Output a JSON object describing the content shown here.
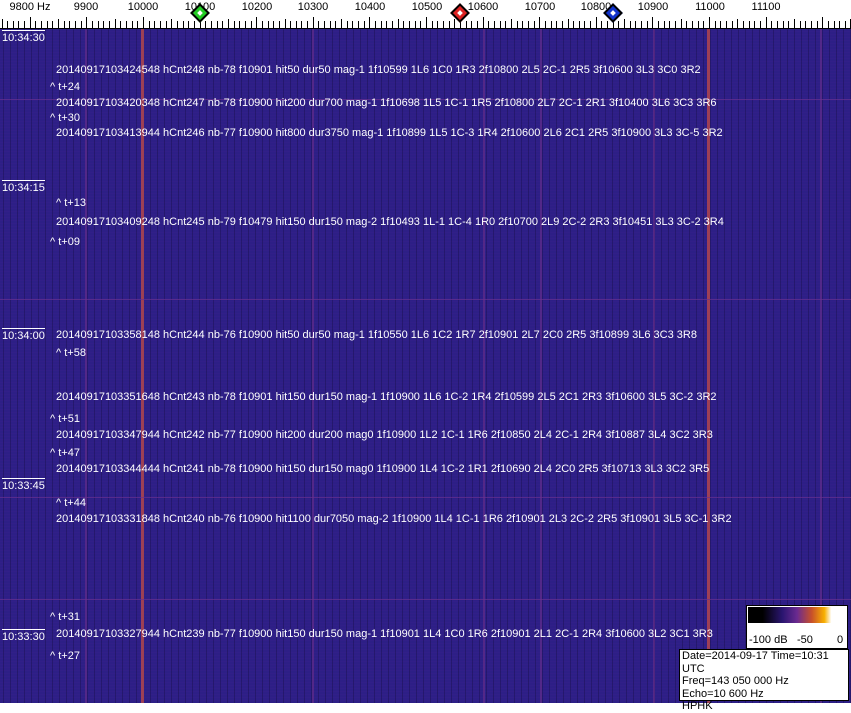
{
  "axis": {
    "unit_label": "9800 Hz",
    "ticks": [
      "9900",
      "10000",
      "10100",
      "10200",
      "10300",
      "10400",
      "10500",
      "10600",
      "10700",
      "10800",
      "10900",
      "11000",
      "11100"
    ],
    "markers": [
      {
        "name": "green",
        "freq_hz": 10100,
        "color": "#22cc22"
      },
      {
        "name": "red",
        "freq_hz": 10560,
        "color": "#dd2222"
      },
      {
        "name": "blue",
        "freq_hz": 10830,
        "color": "#1133cc"
      }
    ]
  },
  "timestamps": [
    "10:34:30",
    "10:34:15",
    "10:34:00",
    "10:33:45",
    "10:33:30"
  ],
  "detections": [
    "20140917103424548 hCnt248 nb-78 f10901 hit50 dur50 mag-1 1f10599 1L6 1C0 1R3 2f10800 2L5 2C-1 2R5 3f10600 3L3 3C0 3R2",
    "20140917103420348 hCnt247 nb-78 f10900 hit200 dur700 mag-1 1f10698 1L5 1C-1 1R5 2f10800 2L7 2C-1 2R1 3f10400 3L6 3C3 3R6",
    "20140917103413944 hCnt246 nb-77 f10900 hit800 dur3750 mag-1 1f10899 1L5 1C-3 1R4 2f10600 2L6 2C1 2R5 3f10900 3L3 3C-5 3R2",
    "20140917103409248 hCnt245 nb-79 f10479 hit150 dur150 mag-2 1f10493 1L-1 1C-4 1R0 2f10700 2L9 2C-2 2R3 3f10451 3L3 3C-2 3R4",
    "20140917103358148 hCnt244 nb-76 f10900 hit50 dur50 mag-1 1f10550 1L6 1C2 1R7 2f10901 2L7 2C0 2R5 3f10899 3L6 3C3 3R8",
    "20140917103351648 hCnt243 nb-78 f10901 hit150 dur150 mag-1 1f10900 1L6 1C-2 1R4 2f10599 2L5 2C1 2R3 3f10600 3L5 3C-2 3R2",
    "20140917103347944 hCnt242 nb-77 f10900 hit200 dur200 mag0 1f10900 1L2 1C-1 1R6 2f10850 2L4 2C-1 2R4 3f10887 3L4 3C2 3R3",
    "20140917103344444 hCnt241 nb-78 f10900 hit150 dur150 mag0 1f10900 1L4 1C-2 1R1 2f10690 2L4 2C0 2R5 3f10713 3L3 3C2 3R5",
    "20140917103331848 hCnt240 nb-76 f10900 hit1100 dur7050 mag-2 1f10900 1L4 1C-1 1R6 2f10901 2L3 2C-2 2R5 3f10901 3L5 3C-1 3R2",
    "20140917103327944 hCnt239 nb-77 f10900 hit150 dur150 mag-1 1f10901 1L4 1C0 1R6 2f10901 2L1 2C-1 2R4 3f10600 3L2 3C1 3R3"
  ],
  "intervals": [
    "^ t+24",
    "^ t+30",
    "^ t+13",
    "^ t+09",
    "^ t+58",
    "^ t+51",
    "^ t+47",
    "^ t+44",
    "^ t+31",
    "^ t+27"
  ],
  "legend": {
    "labels": [
      "-100 dB",
      "-50",
      "0"
    ]
  },
  "info": {
    "date_time": "Date=2014-09-17 Time=10:31 UTC",
    "freq": "Freq=143 050 000 Hz",
    "echo": "Echo=10 600 Hz",
    "station": "HPHK"
  }
}
